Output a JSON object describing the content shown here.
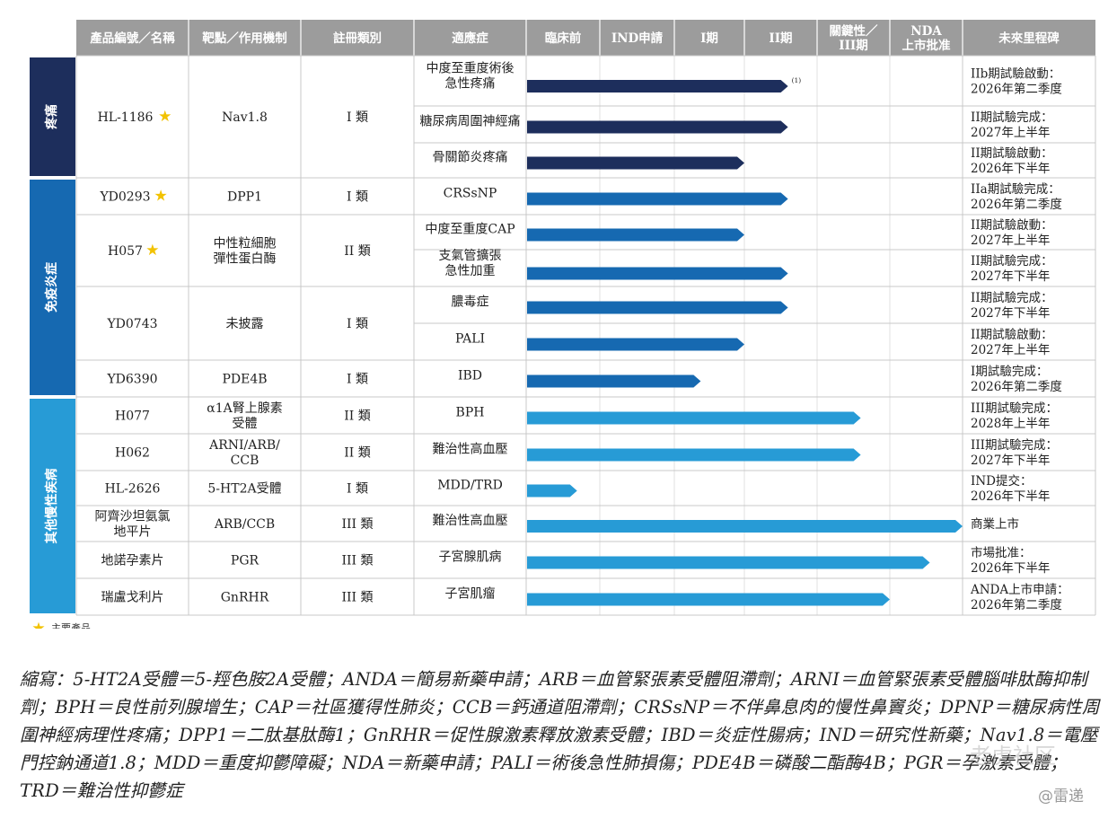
{
  "headers": [
    "產品編號／名稱",
    "靶點／作用機制",
    "註冊類別",
    "適應症",
    "臨床前",
    "IND申請",
    "I期",
    "II期",
    "關鍵性／\nIII期",
    "NDA\n上市批准",
    "未來里程碑"
  ],
  "groups": [
    {
      "label": "疼痛",
      "color": "#1d2e5c"
    },
    {
      "label": "免疫炎症",
      "color": "#1669b1"
    },
    {
      "label": "其他慢性疾病",
      "color": "#279bd6"
    }
  ],
  "products": [
    {
      "name": "HL-1186",
      "star": true,
      "target": "Nav1.8",
      "category": "I 類",
      "group": 0,
      "rows": [
        {
          "indication": "中度至重度術後\n急性疼痛",
          "progress": 3.6,
          "marker": "(1)",
          "milestone": "IIb期試驗啟動：\n2026年第二季度"
        },
        {
          "indication": "糖尿病周圍神經痛",
          "progress": 3.6,
          "milestone": "II期試驗完成：\n2027年上半年"
        },
        {
          "indication": "骨關節炎疼痛",
          "progress": 3.0,
          "milestone": "II期試驗啟動：\n2026年下半年"
        }
      ]
    },
    {
      "name": "YD0293",
      "star": true,
      "target": "DPP1",
      "category": "I 類",
      "group": 1,
      "rows": [
        {
          "indication": "CRSsNP",
          "progress": 3.6,
          "milestone": "IIa期試驗完成：\n2026年第二季度"
        }
      ]
    },
    {
      "name": "H057",
      "star": true,
      "target": "中性粒細胞\n彈性蛋白酶",
      "category": "II 類",
      "group": 1,
      "rows": [
        {
          "indication": "中度至重度CAP",
          "progress": 3.0,
          "milestone": "II期試驗啟動：\n2027年上半年"
        },
        {
          "indication": "支氣管擴張\n急性加重",
          "progress": 3.6,
          "milestone": "II期試驗完成：\n2027年下半年"
        }
      ]
    },
    {
      "name": "YD0743",
      "star": false,
      "target": "未披露",
      "category": "I 類",
      "group": 1,
      "rows": [
        {
          "indication": "膿毒症",
          "progress": 3.6,
          "milestone": "II期試驗完成：\n2027年下半年"
        },
        {
          "indication": "PALI",
          "progress": 3.0,
          "milestone": "II期試驗啟動：\n2027年上半年"
        }
      ]
    },
    {
      "name": "YD6390",
      "star": false,
      "target": "PDE4B",
      "category": "I 類",
      "group": 1,
      "rows": [
        {
          "indication": "IBD",
          "progress": 2.4,
          "milestone": "I期試驗完成：\n2026年第二季度"
        }
      ]
    },
    {
      "name": "H077",
      "star": false,
      "target": "α1A腎上腺素\n受體",
      "category": "II 類",
      "group": 2,
      "rows": [
        {
          "indication": "BPH",
          "progress": 4.6,
          "milestone": "III期試驗完成：\n2028年上半年"
        }
      ]
    },
    {
      "name": "H062",
      "star": false,
      "target": "ARNI/ARB/\nCCB",
      "category": "II 類",
      "group": 2,
      "rows": [
        {
          "indication": "難治性高血壓",
          "progress": 4.6,
          "milestone": "III期試驗完成：\n2027年下半年"
        }
      ]
    },
    {
      "name": "HL-2626",
      "star": false,
      "target": "5-HT2A受體",
      "category": "I 類",
      "group": 2,
      "rows": [
        {
          "indication": "MDD/TRD",
          "progress": 0.7,
          "milestone": "IND提交：\n2026年下半年"
        }
      ]
    },
    {
      "name": "阿齊沙坦氨氯\n地平片",
      "star": false,
      "target": "ARB/CCB",
      "category": "III 類",
      "group": 2,
      "rows": [
        {
          "indication": "難治性高血壓",
          "progress": 6.0,
          "milestone": "商業上市"
        }
      ]
    },
    {
      "name": "地諾孕素片",
      "star": false,
      "target": "PGR",
      "category": "III 類",
      "group": 2,
      "rows": [
        {
          "indication": "子宮腺肌病",
          "progress": 5.55,
          "milestone": "市場批准：\n2026年下半年"
        }
      ]
    },
    {
      "name": "瑞盧戈利片",
      "star": false,
      "target": "GnRHR",
      "category": "III 類",
      "group": 2,
      "rows": [
        {
          "indication": "子宮肌瘤",
          "progress": 5.0,
          "milestone": "ANDA上市申請：\n2026年第二季度"
        }
      ]
    }
  ],
  "legend": "主要產品",
  "footnote": "縮寫：5-HT2A受體＝5-羥色胺2A受體；ANDA＝簡易新藥申請；ARB＝血管緊張素受體阻滯劑；ARNI＝血管緊張素受體腦啡肽酶抑制劑；BPH＝良性前列腺增生；CAP＝社區獲得性肺炎；CCB＝鈣通道阻滯劑；CRSsNP＝不伴鼻息肉的慢性鼻竇炎；DPNP＝糖尿病性周圍神經病理性疼痛；DPP1＝二肽基肽酶1；GnRHR＝促性腺激素釋放激素受體；IBD＝炎症性腸病；IND＝研究性新藥；Nav1.8＝電壓門控鈉通道1.8；MDD＝重度抑鬱障礙；NDA＝新藥申請；PALI＝術後急性肺損傷；PDE4B＝磷酸二酯酶4B；PGR＝孕激素受體；TRD＝難治性抑鬱症",
  "watermark": {
    "line1": "老虎社区",
    "line2": "@雷递"
  }
}
